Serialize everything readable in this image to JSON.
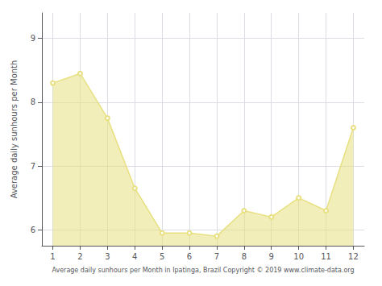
{
  "chart_data": {
    "type": "area",
    "xlabel": "Average daily sunhours per Month in Ipatinga, Brazil Copyright © 2019 www.climate-data.org",
    "ylabel": "Average daily sunhours per Month",
    "x": [
      1,
      2,
      3,
      4,
      5,
      6,
      7,
      8,
      9,
      10,
      11,
      12
    ],
    "values": [
      8.3,
      8.45,
      7.75,
      6.65,
      5.95,
      5.95,
      5.9,
      6.3,
      6.2,
      6.5,
      6.3,
      7.6
    ],
    "xlim": [
      0.6,
      12.4
    ],
    "ylim": [
      5.75,
      9.4
    ],
    "xticks": [
      1,
      2,
      3,
      4,
      5,
      6,
      7,
      8,
      9,
      10,
      11,
      12
    ],
    "yticks": [
      6,
      7,
      8,
      9
    ],
    "grid": true,
    "color": "#e8e080",
    "marker": "circle"
  }
}
